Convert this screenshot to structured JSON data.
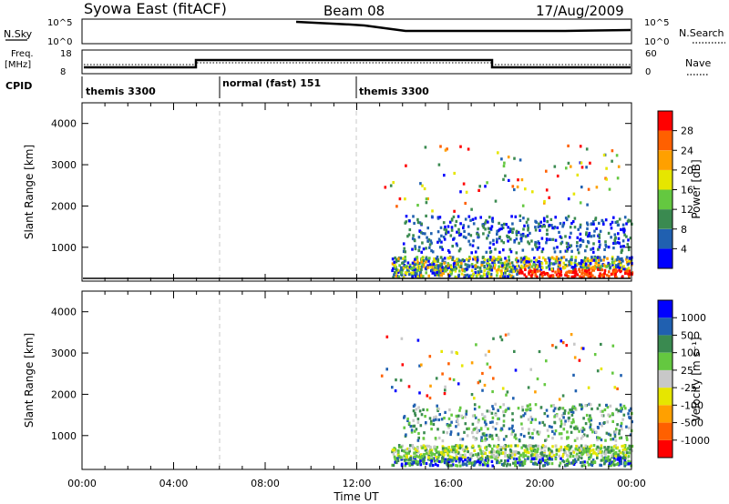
{
  "header": {
    "station": "Syowa East (fitACF)",
    "beam": "Beam 08",
    "date": "17/Aug/2009"
  },
  "panels": {
    "nsky": {
      "label_left": "N.Sky",
      "label_right": "N.Search",
      "ticks_left": [
        "10^5",
        "10^0"
      ],
      "ticks_right": [
        "10^5",
        "10^0"
      ]
    },
    "freq": {
      "label_left_1": "Freq.",
      "label_left_2": "[MHz]",
      "label_right": "Nave",
      "ticks_left": [
        "18",
        "8"
      ],
      "ticks_right": [
        "60",
        "0"
      ]
    },
    "cpid": {
      "label": "CPID",
      "segments": [
        {
          "start": 0,
          "end": 6,
          "label": "themis 3300"
        },
        {
          "start": 6,
          "end": 12,
          "label": "normal (fast) 151"
        },
        {
          "start": 12,
          "end": 24,
          "label": "themis 3300"
        }
      ]
    }
  },
  "colors": {
    "power": [
      "#0000ff",
      "#2060b0",
      "#3a8a50",
      "#64c840",
      "#e6e600",
      "#ffa000",
      "#ff6000",
      "#ff0000"
    ],
    "velocity": [
      "#ff0000",
      "#ff6000",
      "#ffa000",
      "#e6e600",
      "#c8c8c8",
      "#64c840",
      "#3a8a50",
      "#2060b0",
      "#0000ff"
    ]
  },
  "chart_data": [
    {
      "type": "heatmap",
      "name": "power",
      "xlabel": "Time UT",
      "ylabel": "Slant Range [km]",
      "x_ticks": [
        "00:00",
        "04:00",
        "08:00",
        "12:00",
        "16:00",
        "20:00",
        "00:00"
      ],
      "xlim": [
        0,
        24
      ],
      "ylim": [
        180,
        4500
      ],
      "y_ticks": [
        "1000",
        "2000",
        "3000",
        "4000"
      ],
      "y_tick_values": [
        1000,
        2000,
        3000,
        4000
      ],
      "colorbar": {
        "label": "Power [dB]",
        "ticks": [
          "4",
          "8",
          "12",
          "16",
          "20",
          "24",
          "28"
        ],
        "range": [
          0,
          32
        ]
      },
      "dashed_lines_hours": [
        6,
        12
      ]
    },
    {
      "type": "heatmap",
      "name": "velocity",
      "xlabel": "Time UT",
      "ylabel": "Slant Range [km]",
      "x_ticks": [
        "00:00",
        "04:00",
        "08:00",
        "12:00",
        "16:00",
        "20:00",
        "00:00"
      ],
      "xlim": [
        0,
        24
      ],
      "ylim": [
        180,
        4500
      ],
      "y_ticks": [
        "1000",
        "2000",
        "3000",
        "4000"
      ],
      "y_tick_values": [
        1000,
        2000,
        3000,
        4000
      ],
      "colorbar": {
        "label": "Velocity [m s⁻¹]",
        "ticks": [
          "1000",
          "500",
          "100",
          "25",
          "-25",
          "-100",
          "-500",
          "-1000"
        ]
      },
      "dashed_lines_hours": [
        6,
        12
      ]
    }
  ]
}
